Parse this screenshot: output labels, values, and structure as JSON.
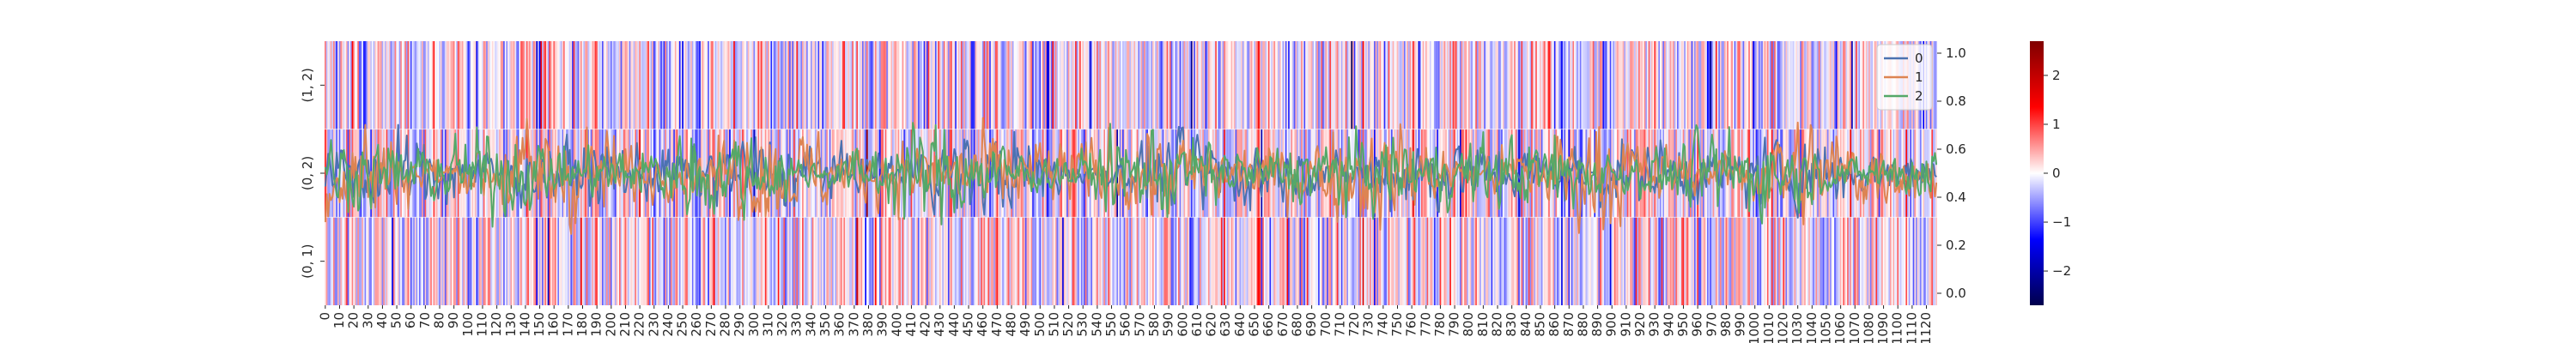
{
  "chart_data": {
    "type": "heatmap",
    "heatmap": {
      "row_labels": [
        "(1, 2)",
        "(0, 2)",
        "(0, 1)"
      ],
      "n_columns": 1128,
      "x_tick_labels": [
        "0",
        "10",
        "20",
        "30",
        "40",
        "50",
        "60",
        "70",
        "80",
        "90",
        "100",
        "110",
        "120",
        "130",
        "140",
        "150",
        "160",
        "170",
        "180",
        "190",
        "200",
        "210",
        "220",
        "230",
        "240",
        "250",
        "260",
        "270",
        "280",
        "290",
        "300",
        "310",
        "320",
        "330",
        "340",
        "350",
        "360",
        "370",
        "380",
        "390",
        "400",
        "410",
        "420",
        "430",
        "440",
        "450",
        "460",
        "470",
        "480",
        "490",
        "500",
        "510",
        "520",
        "530",
        "540",
        "550",
        "560",
        "570",
        "580",
        "590",
        "600",
        "610",
        "620",
        "630",
        "640",
        "650",
        "660",
        "670",
        "680",
        "690",
        "700",
        "710",
        "720",
        "730",
        "740",
        "750",
        "760",
        "770",
        "780",
        "790",
        "800",
        "810",
        "820",
        "830",
        "840",
        "850",
        "860",
        "870",
        "880",
        "890",
        "900",
        "910",
        "920",
        "930",
        "940",
        "950",
        "960",
        "970",
        "980",
        "990",
        "1000",
        "1010",
        "1020",
        "1030",
        "1040",
        "1050",
        "1060",
        "1070",
        "1080",
        "1090",
        "1100",
        "1110",
        "1120"
      ],
      "colormap": "seismic",
      "colormap_stops": [
        "#00004c",
        "#0000ff",
        "#ffffff",
        "#ff0000",
        "#800000"
      ],
      "value_range": [
        -2.7,
        2.7
      ]
    },
    "lines": {
      "series": [
        {
          "name": "0",
          "color": "#4c72b0"
        },
        {
          "name": "1",
          "color": "#dd8452"
        },
        {
          "name": "2",
          "color": "#55a868"
        }
      ],
      "ylim": [
        -0.05,
        1.05
      ],
      "y_ticks": [
        "0.0",
        "0.2",
        "0.4",
        "0.6",
        "0.8",
        "1.0"
      ],
      "legend_position": "top-right"
    },
    "colorbar": {
      "ticks": [
        "−2",
        "−1",
        "0",
        "1",
        "2"
      ],
      "tick_values": [
        -2,
        -1,
        0,
        1,
        2
      ]
    }
  }
}
